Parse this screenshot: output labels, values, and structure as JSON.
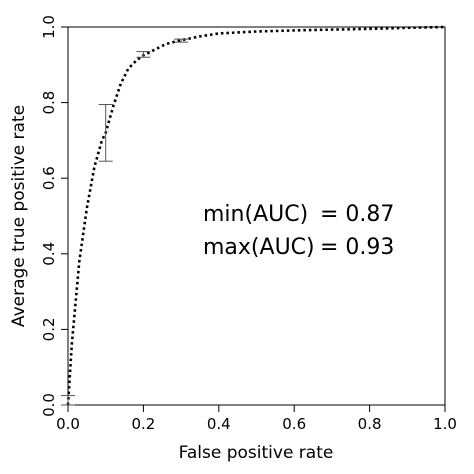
{
  "chart_data": {
    "type": "line",
    "title": "",
    "xlabel": "False positive rate",
    "ylabel": "Average true positive rate",
    "xlim": [
      0,
      1
    ],
    "ylim": [
      0,
      1
    ],
    "xticks": [
      "0.0",
      "0.2",
      "0.4",
      "0.6",
      "0.8",
      "1.0"
    ],
    "yticks": [
      "0.0",
      "0.2",
      "0.4",
      "0.6",
      "0.8",
      "1.0"
    ],
    "grid": false,
    "line_style": "dotted",
    "series": [
      {
        "x": [
          0.0,
          0.01,
          0.03,
          0.05,
          0.07,
          0.09,
          0.1,
          0.12,
          0.14,
          0.16,
          0.18,
          0.2,
          0.23,
          0.26,
          0.3,
          0.35,
          0.4,
          0.5,
          0.6,
          0.7,
          0.8,
          0.9,
          1.0
        ],
        "y": [
          0.0,
          0.16,
          0.38,
          0.52,
          0.63,
          0.7,
          0.72,
          0.79,
          0.85,
          0.89,
          0.91,
          0.925,
          0.94,
          0.955,
          0.965,
          0.975,
          0.983,
          0.988,
          0.991,
          0.993,
          0.995,
          0.998,
          1.0
        ]
      }
    ],
    "error_bars": [
      {
        "x": 0.0,
        "low": 0.0,
        "high": 0.025
      },
      {
        "x": 0.1,
        "low": 0.645,
        "high": 0.795
      },
      {
        "x": 0.2,
        "low": 0.92,
        "high": 0.935
      },
      {
        "x": 0.3,
        "low": 0.96,
        "high": 0.968
      }
    ],
    "annotations": [
      {
        "label": "min(AUC)",
        "value": "= 0.87"
      },
      {
        "label": "max(AUC)",
        "value": "= 0.93"
      }
    ]
  }
}
